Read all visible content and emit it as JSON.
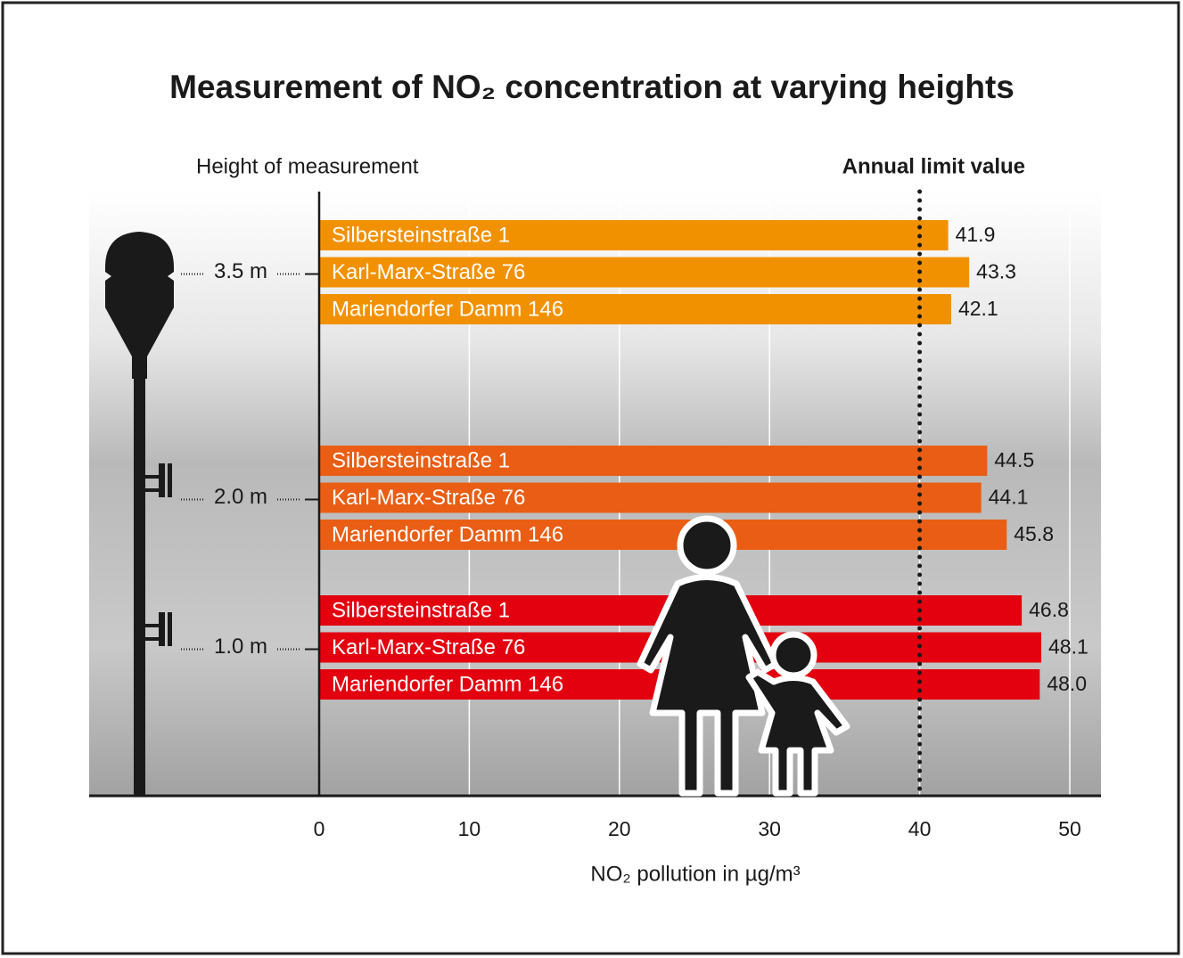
{
  "chart_data": {
    "type": "bar",
    "orientation": "horizontal",
    "title": "Measurement of NO₂ concentration at varying heights",
    "y_label": "Height of measurement",
    "x_label": "NO₂ pollution in µg/m³",
    "limit": {
      "label": "Annual limit value",
      "value": 40
    },
    "groups": [
      {
        "name": "3.5 m",
        "color": "#f29100",
        "categories": [
          "Silbersteinstraße 1",
          "Karl-Marx-Straße 76",
          "Mariendorfer Damm 146"
        ],
        "values": [
          41.9,
          43.3,
          42.1
        ],
        "value_labels": [
          "41.9",
          "43.3",
          "42.1"
        ]
      },
      {
        "name": "2.0 m",
        "color": "#e95e14",
        "categories": [
          "Silbersteinstraße 1",
          "Karl-Marx-Straße 76",
          "Mariendorfer Damm 146"
        ],
        "values": [
          44.5,
          44.1,
          45.8
        ],
        "value_labels": [
          "44.5",
          "44.1",
          "45.8"
        ]
      },
      {
        "name": "1.0 m",
        "color": "#e3000f",
        "categories": [
          "Silbersteinstraße 1",
          "Karl-Marx-Straße 76",
          "Mariendorfer Damm 146"
        ],
        "values": [
          46.8,
          48.1,
          48.0
        ],
        "value_labels": [
          "46.8",
          "48.1",
          "48.0"
        ]
      }
    ],
    "xlim": [
      0,
      52
    ],
    "xticks": [
      0,
      10,
      20,
      30,
      40,
      50
    ],
    "grid": true
  }
}
